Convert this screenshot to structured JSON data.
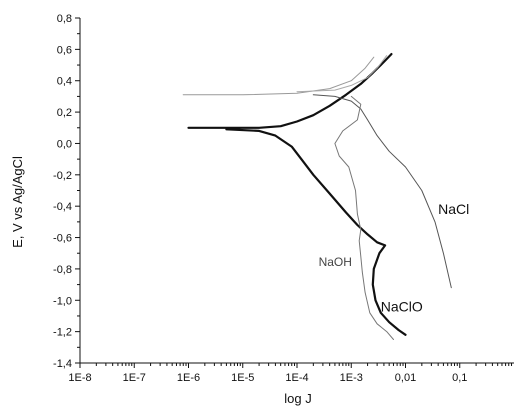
{
  "chart_data": {
    "type": "line",
    "title": "",
    "xlabel": "log J",
    "ylabel": "E, V vs Ag/AgCl",
    "x_scale": "log",
    "xlim": [
      1e-08,
      1
    ],
    "ylim": [
      -1.4,
      0.8
    ],
    "x_ticks": [
      {
        "value": 1e-08,
        "label": "1E-8"
      },
      {
        "value": 1e-07,
        "label": "1E-7"
      },
      {
        "value": 1e-06,
        "label": "1E-6"
      },
      {
        "value": 1e-05,
        "label": "1E-5"
      },
      {
        "value": 0.0001,
        "label": "1E-4"
      },
      {
        "value": 0.001,
        "label": "1E-3"
      },
      {
        "value": 0.01,
        "label": "0,01"
      },
      {
        "value": 0.1,
        "label": "0,1"
      }
    ],
    "y_ticks": [
      {
        "value": 0.8,
        "label": "0,8"
      },
      {
        "value": 0.6,
        "label": "0,6"
      },
      {
        "value": 0.4,
        "label": "0,4"
      },
      {
        "value": 0.2,
        "label": "0,2"
      },
      {
        "value": 0.0,
        "label": "0,0"
      },
      {
        "value": -0.2,
        "label": "-0,2"
      },
      {
        "value": -0.4,
        "label": "-0,4"
      },
      {
        "value": -0.6,
        "label": "-0,6"
      },
      {
        "value": -0.8,
        "label": "-0,8"
      },
      {
        "value": -1.0,
        "label": "-1,0"
      },
      {
        "value": -1.2,
        "label": "-1,2"
      },
      {
        "value": -1.4,
        "label": "-1,4"
      }
    ],
    "grid": false,
    "series": [
      {
        "name": "NaClO",
        "color": "#111111",
        "style": "thick",
        "points": [
          [
            1e-06,
            0.1
          ],
          [
            5e-06,
            0.1
          ],
          [
            2e-05,
            0.1
          ],
          [
            5e-05,
            0.11
          ],
          [
            0.0001,
            0.14
          ],
          [
            0.0002,
            0.18
          ],
          [
            0.0004,
            0.24
          ],
          [
            0.0008,
            0.31
          ],
          [
            0.0015,
            0.38
          ],
          [
            0.0025,
            0.45
          ],
          [
            0.004,
            0.52
          ],
          [
            0.0055,
            0.57
          ],
          null,
          [
            5e-06,
            0.09
          ],
          [
            2e-05,
            0.08
          ],
          [
            4e-05,
            0.05
          ],
          [
            8e-05,
            -0.02
          ],
          [
            0.00012,
            -0.1
          ],
          [
            0.0002,
            -0.2
          ],
          [
            0.0004,
            -0.32
          ],
          [
            0.0008,
            -0.44
          ],
          [
            0.0013,
            -0.52
          ],
          [
            0.002,
            -0.58
          ],
          [
            0.003,
            -0.63
          ],
          [
            0.0042,
            -0.65
          ],
          [
            0.0033,
            -0.7
          ],
          [
            0.0026,
            -0.8
          ],
          [
            0.0025,
            -0.9
          ],
          [
            0.0028,
            -1.0
          ],
          [
            0.0035,
            -1.08
          ],
          [
            0.005,
            -1.14
          ],
          [
            0.0075,
            -1.19
          ],
          [
            0.01,
            -1.22
          ]
        ]
      },
      {
        "name": "NaCl",
        "color": "#555555",
        "style": "thin",
        "points": [
          [
            0.0002,
            0.31
          ],
          [
            0.0005,
            0.3
          ],
          [
            0.001,
            0.27
          ],
          [
            0.0015,
            0.22
          ],
          [
            0.002,
            0.15
          ],
          [
            0.003,
            0.05
          ],
          [
            0.005,
            -0.05
          ],
          [
            0.01,
            -0.15
          ],
          [
            0.02,
            -0.3
          ],
          [
            0.035,
            -0.5
          ],
          [
            0.05,
            -0.7
          ],
          [
            0.07,
            -0.92
          ]
        ]
      },
      {
        "name": "NaOH",
        "color": "#777777",
        "style": "thin",
        "points": [
          [
            0.001,
            0.3
          ],
          [
            0.0015,
            0.25
          ],
          [
            0.0013,
            0.15
          ],
          [
            0.0007,
            0.08
          ],
          [
            0.0005,
            0.0
          ],
          [
            0.0006,
            -0.08
          ],
          [
            0.0009,
            -0.15
          ],
          [
            0.0012,
            -0.3
          ],
          [
            0.0013,
            -0.45
          ],
          [
            0.0015,
            -0.55
          ],
          [
            0.0014,
            -0.62
          ],
          [
            0.0015,
            -0.72
          ],
          [
            0.0016,
            -0.82
          ],
          [
            0.0018,
            -0.95
          ],
          [
            0.0022,
            -1.08
          ],
          [
            0.003,
            -1.15
          ],
          [
            0.0045,
            -1.2
          ],
          [
            0.006,
            -1.25
          ]
        ]
      },
      {
        "name": "",
        "color": "#999999",
        "style": "thin",
        "points": [
          [
            8e-07,
            0.31
          ],
          [
            1e-05,
            0.31
          ],
          [
            0.0001,
            0.32
          ],
          [
            0.0004,
            0.35
          ],
          [
            0.001,
            0.4
          ],
          [
            0.0018,
            0.48
          ],
          [
            0.0026,
            0.55
          ]
        ]
      },
      {
        "name": "",
        "color": "#aaaaaa",
        "style": "thin",
        "points": [
          [
            0.0001,
            0.33
          ],
          [
            0.0005,
            0.34
          ],
          [
            0.001,
            0.37
          ],
          [
            0.002,
            0.42
          ],
          [
            0.003,
            0.48
          ],
          [
            0.0045,
            0.56
          ]
        ]
      }
    ],
    "annotations": [
      {
        "text": "NaCl",
        "x": 0.04,
        "y": -0.45,
        "style": "big"
      },
      {
        "text": "NaOH",
        "x": 0.00025,
        "y": -0.78,
        "style": "small"
      },
      {
        "text": "NaClO",
        "x": 0.0035,
        "y": -1.07,
        "style": "big"
      }
    ]
  }
}
